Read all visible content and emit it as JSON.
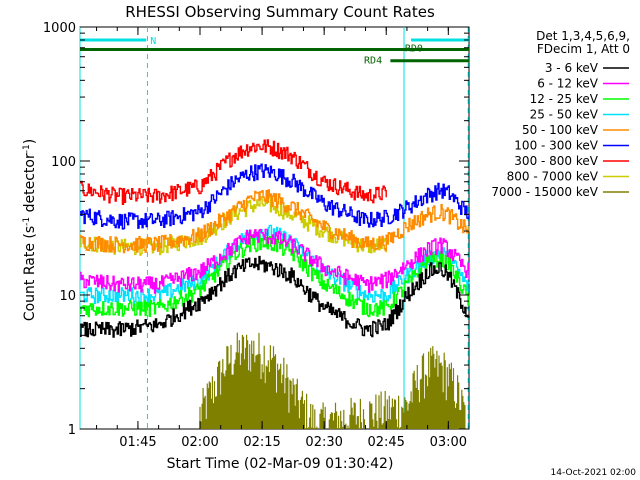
{
  "chart_data": {
    "type": "line",
    "title": "RHESSI Observing Summary Count Rates",
    "xlabel": "Start Time (02-Mar-09 01:30:42)",
    "ylabel_main": "Count Rate (s",
    "ylabel_sup1": "-1",
    "ylabel_mid": " detector",
    "ylabel_sup2": "-1",
    "ylabel_end": ")",
    "y_scale": "log",
    "ylim": [
      1,
      1000
    ],
    "xlim_minutes": [
      1.0,
      95.0
    ],
    "x_ticks": [
      {
        "label": "01:45",
        "minute": 15
      },
      {
        "label": "02:00",
        "minute": 30
      },
      {
        "label": "02:15",
        "minute": 45
      },
      {
        "label": "02:30",
        "minute": 60
      },
      {
        "label": "02:45",
        "minute": 75
      },
      {
        "label": "03:00",
        "minute": 90
      }
    ],
    "y_ticks": [
      {
        "label": "1",
        "value": 1
      },
      {
        "label": "10",
        "value": 10
      },
      {
        "label": "100",
        "value": 100
      },
      {
        "label": "1000",
        "value": 1000
      }
    ],
    "legend_header": [
      "Det 1,3,4,5,6,9,",
      "FDecim 1, Att 0"
    ],
    "footer_date": "14-Oct-2021 02:00",
    "flag_bars": [
      {
        "label": "N",
        "color": "#00e0e0",
        "ranges": [
          [
            1,
            17
          ],
          [
            81,
            95
          ]
        ],
        "level": 800
      },
      {
        "label": "RD0",
        "color": "#006400",
        "ranges": [
          [
            1,
            95
          ]
        ],
        "level": 680
      },
      {
        "label": "RD4",
        "color": "#006400",
        "ranges": [
          [
            76,
            95
          ]
        ],
        "level": 560
      }
    ],
    "vlines_solid": [
      1.0,
      79.3
    ],
    "vlines_dashed": [
      17.3,
      94.8
    ],
    "x_grid_minutes": [
      1.0,
      17.3,
      79.3,
      94.8
    ],
    "series": [
      {
        "name": "3 - 6 keV",
        "color": "#000000",
        "x": [
          1,
          10,
          20,
          30,
          38,
          42,
          45,
          48,
          52,
          60,
          70,
          75,
          80,
          85,
          88,
          90,
          93,
          95
        ],
        "y": [
          5.5,
          5.5,
          6,
          9,
          15,
          17,
          17,
          16,
          14,
          8,
          5.5,
          6,
          10,
          15,
          16,
          14,
          9,
          7
        ]
      },
      {
        "name": "6 - 12 keV",
        "color": "#ff00ff",
        "x": [
          1,
          10,
          20,
          30,
          38,
          42,
          45,
          48,
          52,
          60,
          70,
          75,
          80,
          85,
          88,
          90,
          93,
          95
        ],
        "y": [
          13,
          12,
          12,
          15,
          23,
          28,
          28,
          27,
          24,
          16,
          12,
          13,
          17,
          22,
          24,
          22,
          17,
          15
        ]
      },
      {
        "name": "12 - 25 keV",
        "color": "#00ff00",
        "x": [
          1,
          10,
          20,
          30,
          38,
          42,
          45,
          48,
          52,
          60,
          70,
          75,
          80,
          85,
          88,
          90,
          93,
          95
        ],
        "y": [
          8,
          8,
          8,
          11,
          20,
          24,
          25,
          24,
          21,
          12,
          8,
          8,
          12,
          18,
          19,
          17,
          12,
          9
        ]
      },
      {
        "name": "25 - 50 keV",
        "color": "#00e0ff",
        "x": [
          1,
          10,
          20,
          30,
          38,
          42,
          45,
          48,
          52,
          60,
          70,
          75,
          80,
          85,
          88,
          90,
          93,
          95
        ],
        "y": [
          10,
          10,
          10,
          13,
          23,
          29,
          30,
          29,
          25,
          15,
          10,
          10,
          14,
          19,
          21,
          19,
          14,
          11
        ]
      },
      {
        "name": "50 - 100 keV",
        "color": "#ff8c00",
        "x": [
          1,
          10,
          20,
          30,
          38,
          42,
          45,
          48,
          52,
          60,
          70,
          75,
          80,
          85,
          88,
          90,
          93,
          95
        ],
        "y": [
          25,
          24,
          24,
          28,
          42,
          52,
          55,
          52,
          46,
          32,
          24,
          25,
          33,
          40,
          42,
          40,
          33,
          30
        ]
      },
      {
        "name": "100 - 300 keV",
        "color": "#0000ff",
        "x": [
          1,
          10,
          20,
          30,
          38,
          42,
          45,
          48,
          52,
          60,
          70,
          75,
          80,
          85,
          88,
          90,
          93,
          95
        ],
        "y": [
          40,
          36,
          36,
          42,
          70,
          82,
          85,
          82,
          72,
          48,
          36,
          38,
          45,
          56,
          61,
          58,
          46,
          40
        ]
      },
      {
        "name": "300 - 800 keV",
        "color": "#ff0000",
        "x": [
          1,
          10,
          20,
          30,
          38,
          42,
          45,
          48,
          52,
          60,
          70,
          75
        ],
        "y": [
          62,
          55,
          55,
          65,
          110,
          128,
          130,
          125,
          110,
          70,
          55,
          58
        ]
      },
      {
        "name": "800 - 7000 keV",
        "color": "#cccc00",
        "x": [
          1,
          10,
          20,
          30,
          38,
          42,
          45,
          48,
          52,
          60,
          70,
          75
        ],
        "y": [
          25,
          23,
          23,
          27,
          40,
          46,
          48,
          46,
          40,
          30,
          23,
          24
        ]
      },
      {
        "name": "7000 - 15000 keV",
        "color": "#808000",
        "x": [
          30,
          33,
          36,
          39,
          42,
          45,
          48,
          51,
          54,
          58,
          80,
          83,
          86,
          89,
          92,
          94
        ],
        "y": [
          1.3,
          2.0,
          3.0,
          3.8,
          4.0,
          3.8,
          3.2,
          2.3,
          1.6,
          1.1,
          1.5,
          2.5,
          3.0,
          2.8,
          2.0,
          1.3
        ]
      }
    ]
  }
}
